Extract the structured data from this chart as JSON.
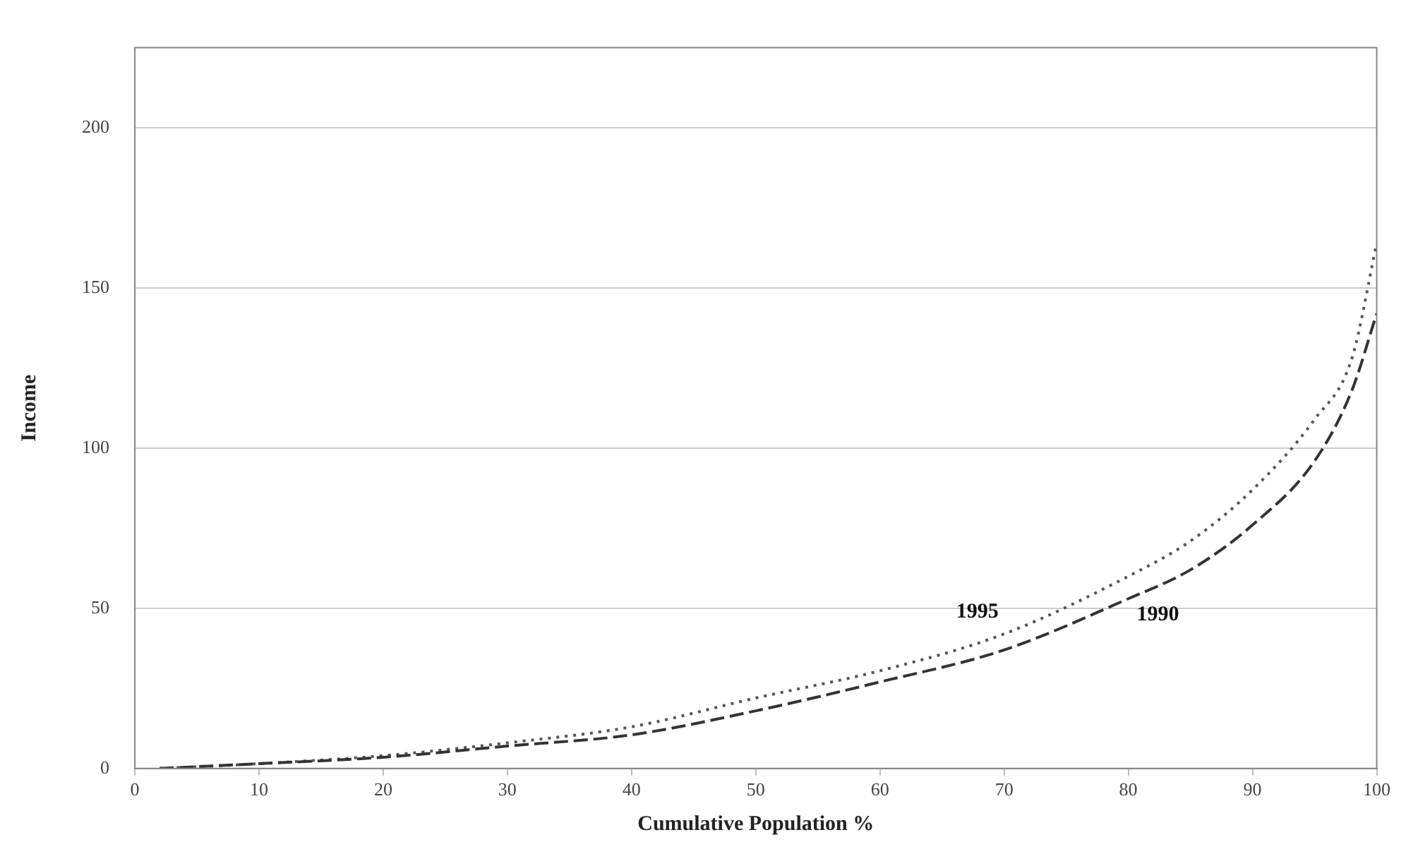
{
  "chart_data": {
    "type": "line",
    "xlabel": "Cumulative Population %",
    "ylabel": "Income",
    "xlim": [
      0,
      100
    ],
    "xticks": [
      0,
      10,
      20,
      30,
      40,
      50,
      60,
      70,
      80,
      90,
      100
    ],
    "ylim": [
      0,
      225
    ],
    "yticks": [
      0,
      50,
      100,
      150,
      200
    ],
    "grid": "y",
    "legend": false,
    "marker": "none",
    "series": [
      {
        "name": "1990",
        "color": "#333333",
        "line_style": "dashed",
        "x": [
          2,
          10,
          20,
          30,
          40,
          50,
          60,
          70,
          80,
          85,
          90,
          95,
          98,
          100
        ],
        "values": [
          0,
          1.5,
          3.5,
          7,
          10.5,
          18,
          27,
          37,
          53,
          62,
          76,
          96,
          118,
          142
        ]
      },
      {
        "name": "1995",
        "color": "#555555",
        "line_style": "dotted",
        "x": [
          2,
          10,
          20,
          30,
          40,
          50,
          60,
          70,
          80,
          85,
          90,
          95,
          98,
          100
        ],
        "values": [
          0,
          1.5,
          4,
          8,
          13,
          22,
          30.5,
          42,
          60,
          71,
          87,
          109,
          128,
          164
        ]
      }
    ]
  }
}
